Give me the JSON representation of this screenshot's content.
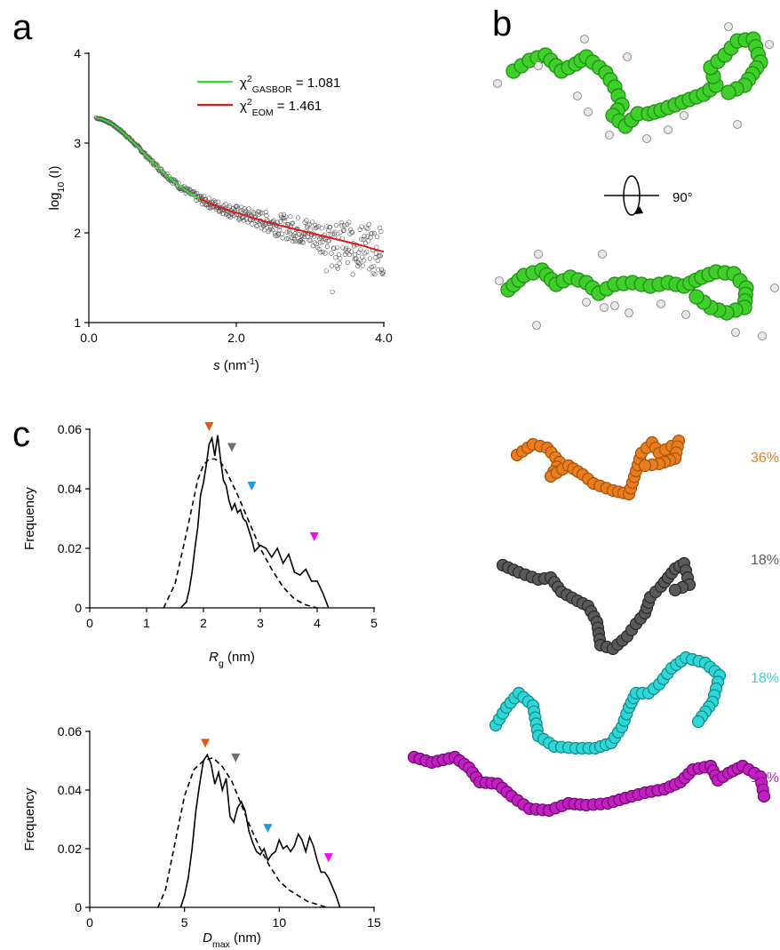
{
  "panel_labels": {
    "a": "a",
    "b": "b",
    "c": "c"
  },
  "panel_b": {
    "rotation_label": "90°"
  },
  "chart_data": [
    {
      "panel": "a",
      "type": "scatter",
      "xlabel": "s (nm⁻¹)",
      "xlabel_parts": {
        "var": "s",
        "unit": " (nm",
        "sup": "-1",
        "close": ")"
      },
      "ylabel": "log10 (I)",
      "ylabel_parts": {
        "pre": "log",
        "sub": "10",
        "post": " (I)"
      },
      "xlim": [
        0,
        4
      ],
      "ylim": [
        1,
        4
      ],
      "xticks": [
        {
          "v": 0,
          "label": "0.0"
        },
        {
          "v": 2,
          "label": "2.0"
        },
        {
          "v": 4,
          "label": "4.0"
        }
      ],
      "yticks": [
        {
          "v": 1,
          "label": "1"
        },
        {
          "v": 2,
          "label": "2"
        },
        {
          "v": 3,
          "label": "3"
        },
        {
          "v": 4,
          "label": "4"
        }
      ],
      "legend": [
        {
          "chi": "χ",
          "sup": "2",
          "sub": "GASBOR",
          "value": " = 1.081",
          "color": "#33dd33"
        },
        {
          "chi": "χ",
          "sup": "2",
          "sub": "EOM",
          "value": " = 1.461",
          "color": "#e01a1a"
        }
      ],
      "series": [
        {
          "name": "GASBOR fit",
          "color": "#33dd33",
          "x": [
            0.1,
            0.2,
            0.3,
            0.4,
            0.5,
            0.6,
            0.7,
            0.8,
            0.9,
            1.0,
            1.1,
            1.2,
            1.3,
            1.4,
            1.5,
            1.6
          ],
          "y": [
            3.28,
            3.26,
            3.22,
            3.16,
            3.09,
            3.01,
            2.93,
            2.84,
            2.76,
            2.68,
            2.61,
            2.54,
            2.48,
            2.43,
            2.38,
            2.34
          ]
        },
        {
          "name": "EOM fit",
          "color": "#e01a1a",
          "x": [
            1.5,
            1.7,
            1.9,
            2.1,
            2.3,
            2.5,
            2.7,
            2.9,
            3.1,
            3.3,
            3.5,
            3.7,
            3.9,
            4.0
          ],
          "y": [
            2.38,
            2.31,
            2.25,
            2.2,
            2.15,
            2.1,
            2.06,
            2.02,
            1.98,
            1.94,
            1.9,
            1.86,
            1.81,
            1.79
          ]
        }
      ]
    },
    {
      "panel": "c-top",
      "type": "line",
      "xlabel": "Rg (nm)",
      "xlabel_parts": {
        "var": "R",
        "sub": "g",
        "unit": " (nm)"
      },
      "ylabel": "Frequency",
      "xlim": [
        0,
        5
      ],
      "ylim": [
        0,
        0.06
      ],
      "xticks": [
        {
          "v": 0,
          "label": "0"
        },
        {
          "v": 1,
          "label": "1"
        },
        {
          "v": 2,
          "label": "2"
        },
        {
          "v": 3,
          "label": "3"
        },
        {
          "v": 4,
          "label": "4"
        },
        {
          "v": 5,
          "label": "5"
        }
      ],
      "yticks": [
        {
          "v": 0,
          "label": "0"
        },
        {
          "v": 0.02,
          "label": "0.02"
        },
        {
          "v": 0.04,
          "label": "0.04"
        },
        {
          "v": 0.06,
          "label": "0.06"
        }
      ],
      "series": [
        {
          "name": "",
          "style": "solid",
          "x": [
            1.6,
            1.7,
            1.75,
            1.8,
            1.85,
            1.9,
            1.95,
            2.0,
            2.05,
            2.1,
            2.15,
            2.2,
            2.25,
            2.3,
            2.35,
            2.4,
            2.45,
            2.5,
            2.55,
            2.6,
            2.65,
            2.7,
            2.75,
            2.8,
            2.85,
            2.9,
            3.0,
            3.1,
            3.2,
            3.3,
            3.4,
            3.5,
            3.6,
            3.7,
            3.8,
            3.9,
            4.0,
            4.1,
            4.2
          ],
          "y": [
            0,
            0.002,
            0.006,
            0.012,
            0.02,
            0.027,
            0.038,
            0.042,
            0.048,
            0.055,
            0.057,
            0.051,
            0.058,
            0.05,
            0.043,
            0.041,
            0.036,
            0.033,
            0.035,
            0.032,
            0.033,
            0.03,
            0.029,
            0.026,
            0.023,
            0.019,
            0.021,
            0.02,
            0.017,
            0.02,
            0.015,
            0.018,
            0.012,
            0.011,
            0.013,
            0.009,
            0.009,
            0.005,
            0
          ]
        },
        {
          "name": "",
          "style": "dashed",
          "x": [
            1.3,
            1.5,
            1.7,
            1.9,
            2.0,
            2.1,
            2.2,
            2.3,
            2.4,
            2.6,
            2.8,
            3.0,
            3.2,
            3.4,
            3.6,
            3.8,
            4.0
          ],
          "y": [
            0,
            0.008,
            0.025,
            0.043,
            0.048,
            0.05,
            0.05,
            0.049,
            0.046,
            0.038,
            0.029,
            0.02,
            0.013,
            0.007,
            0.003,
            0.001,
            0
          ]
        }
      ],
      "markers": [
        {
          "x": 2.1,
          "y": 0.057,
          "color": "#e05a10"
        },
        {
          "x": 2.5,
          "y": 0.05,
          "color": "#707070"
        },
        {
          "x": 2.85,
          "y": 0.037,
          "color": "#1a9ee0"
        },
        {
          "x": 3.95,
          "y": 0.02,
          "color": "#ff00ff"
        }
      ]
    },
    {
      "panel": "c-bottom",
      "type": "line",
      "xlabel": "Dmax (nm)",
      "xlabel_parts": {
        "var": "D",
        "sub": "max",
        "unit": " (nm)"
      },
      "ylabel": "Frequency",
      "xlim": [
        0,
        15
      ],
      "ylim": [
        0,
        0.06
      ],
      "xticks": [
        {
          "v": 0,
          "label": "0"
        },
        {
          "v": 5,
          "label": "5"
        },
        {
          "v": 10,
          "label": "10"
        },
        {
          "v": 15,
          "label": "15"
        }
      ],
      "yticks": [
        {
          "v": 0,
          "label": "0"
        },
        {
          "v": 0.02,
          "label": "0.02"
        },
        {
          "v": 0.04,
          "label": "0.04"
        },
        {
          "v": 0.06,
          "label": "0.06"
        }
      ],
      "series": [
        {
          "name": "",
          "style": "solid",
          "x": [
            4.8,
            5.0,
            5.2,
            5.4,
            5.6,
            5.8,
            6.0,
            6.2,
            6.4,
            6.6,
            6.8,
            7.0,
            7.2,
            7.4,
            7.6,
            7.8,
            8.0,
            8.2,
            8.4,
            8.6,
            8.8,
            9.0,
            9.2,
            9.4,
            9.6,
            9.8,
            10.0,
            10.2,
            10.4,
            10.6,
            10.8,
            11.0,
            11.2,
            11.4,
            11.6,
            11.8,
            12.0,
            12.2,
            12.4,
            12.6,
            12.8,
            13.0,
            13.2
          ],
          "y": [
            0,
            0.004,
            0.01,
            0.02,
            0.033,
            0.042,
            0.05,
            0.052,
            0.049,
            0.042,
            0.046,
            0.04,
            0.044,
            0.031,
            0.029,
            0.034,
            0.036,
            0.033,
            0.026,
            0.022,
            0.019,
            0.018,
            0.02,
            0.016,
            0.018,
            0.019,
            0.023,
            0.02,
            0.021,
            0.019,
            0.021,
            0.025,
            0.023,
            0.019,
            0.024,
            0.021,
            0.016,
            0.012,
            0.012,
            0.01,
            0.007,
            0.004,
            0
          ]
        },
        {
          "name": "",
          "style": "dashed",
          "x": [
            3.6,
            4.0,
            4.5,
            5.0,
            5.5,
            6.0,
            6.5,
            7.0,
            7.5,
            8.0,
            8.5,
            9.0,
            9.5,
            10.0,
            10.5,
            11.0,
            11.5,
            12.0,
            12.5
          ],
          "y": [
            0,
            0.006,
            0.022,
            0.038,
            0.047,
            0.05,
            0.051,
            0.048,
            0.043,
            0.035,
            0.027,
            0.02,
            0.014,
            0.009,
            0.006,
            0.004,
            0.002,
            0.001,
            0
          ]
        }
      ],
      "markers": [
        {
          "x": 6.1,
          "y": 0.052,
          "color": "#e05a10"
        },
        {
          "x": 7.7,
          "y": 0.047,
          "color": "#707070"
        },
        {
          "x": 9.4,
          "y": 0.023,
          "color": "#1a9ee0"
        },
        {
          "x": 12.6,
          "y": 0.013,
          "color": "#ff00ff"
        }
      ]
    }
  ],
  "ensemble": [
    {
      "percent": "36%",
      "color": "#e87d1e",
      "stroke": "#a8520a"
    },
    {
      "percent": "18%",
      "color": "#5a5a5a",
      "stroke": "#2a2a2a"
    },
    {
      "percent": "18%",
      "color": "#2fd6d6",
      "stroke": "#128a8a"
    },
    {
      "percent": "18%",
      "color": "#c21ec2",
      "stroke": "#6e0a6e"
    }
  ],
  "gasbor_model": {
    "color": "#3fcf2a",
    "stroke": "#1f8a12"
  }
}
